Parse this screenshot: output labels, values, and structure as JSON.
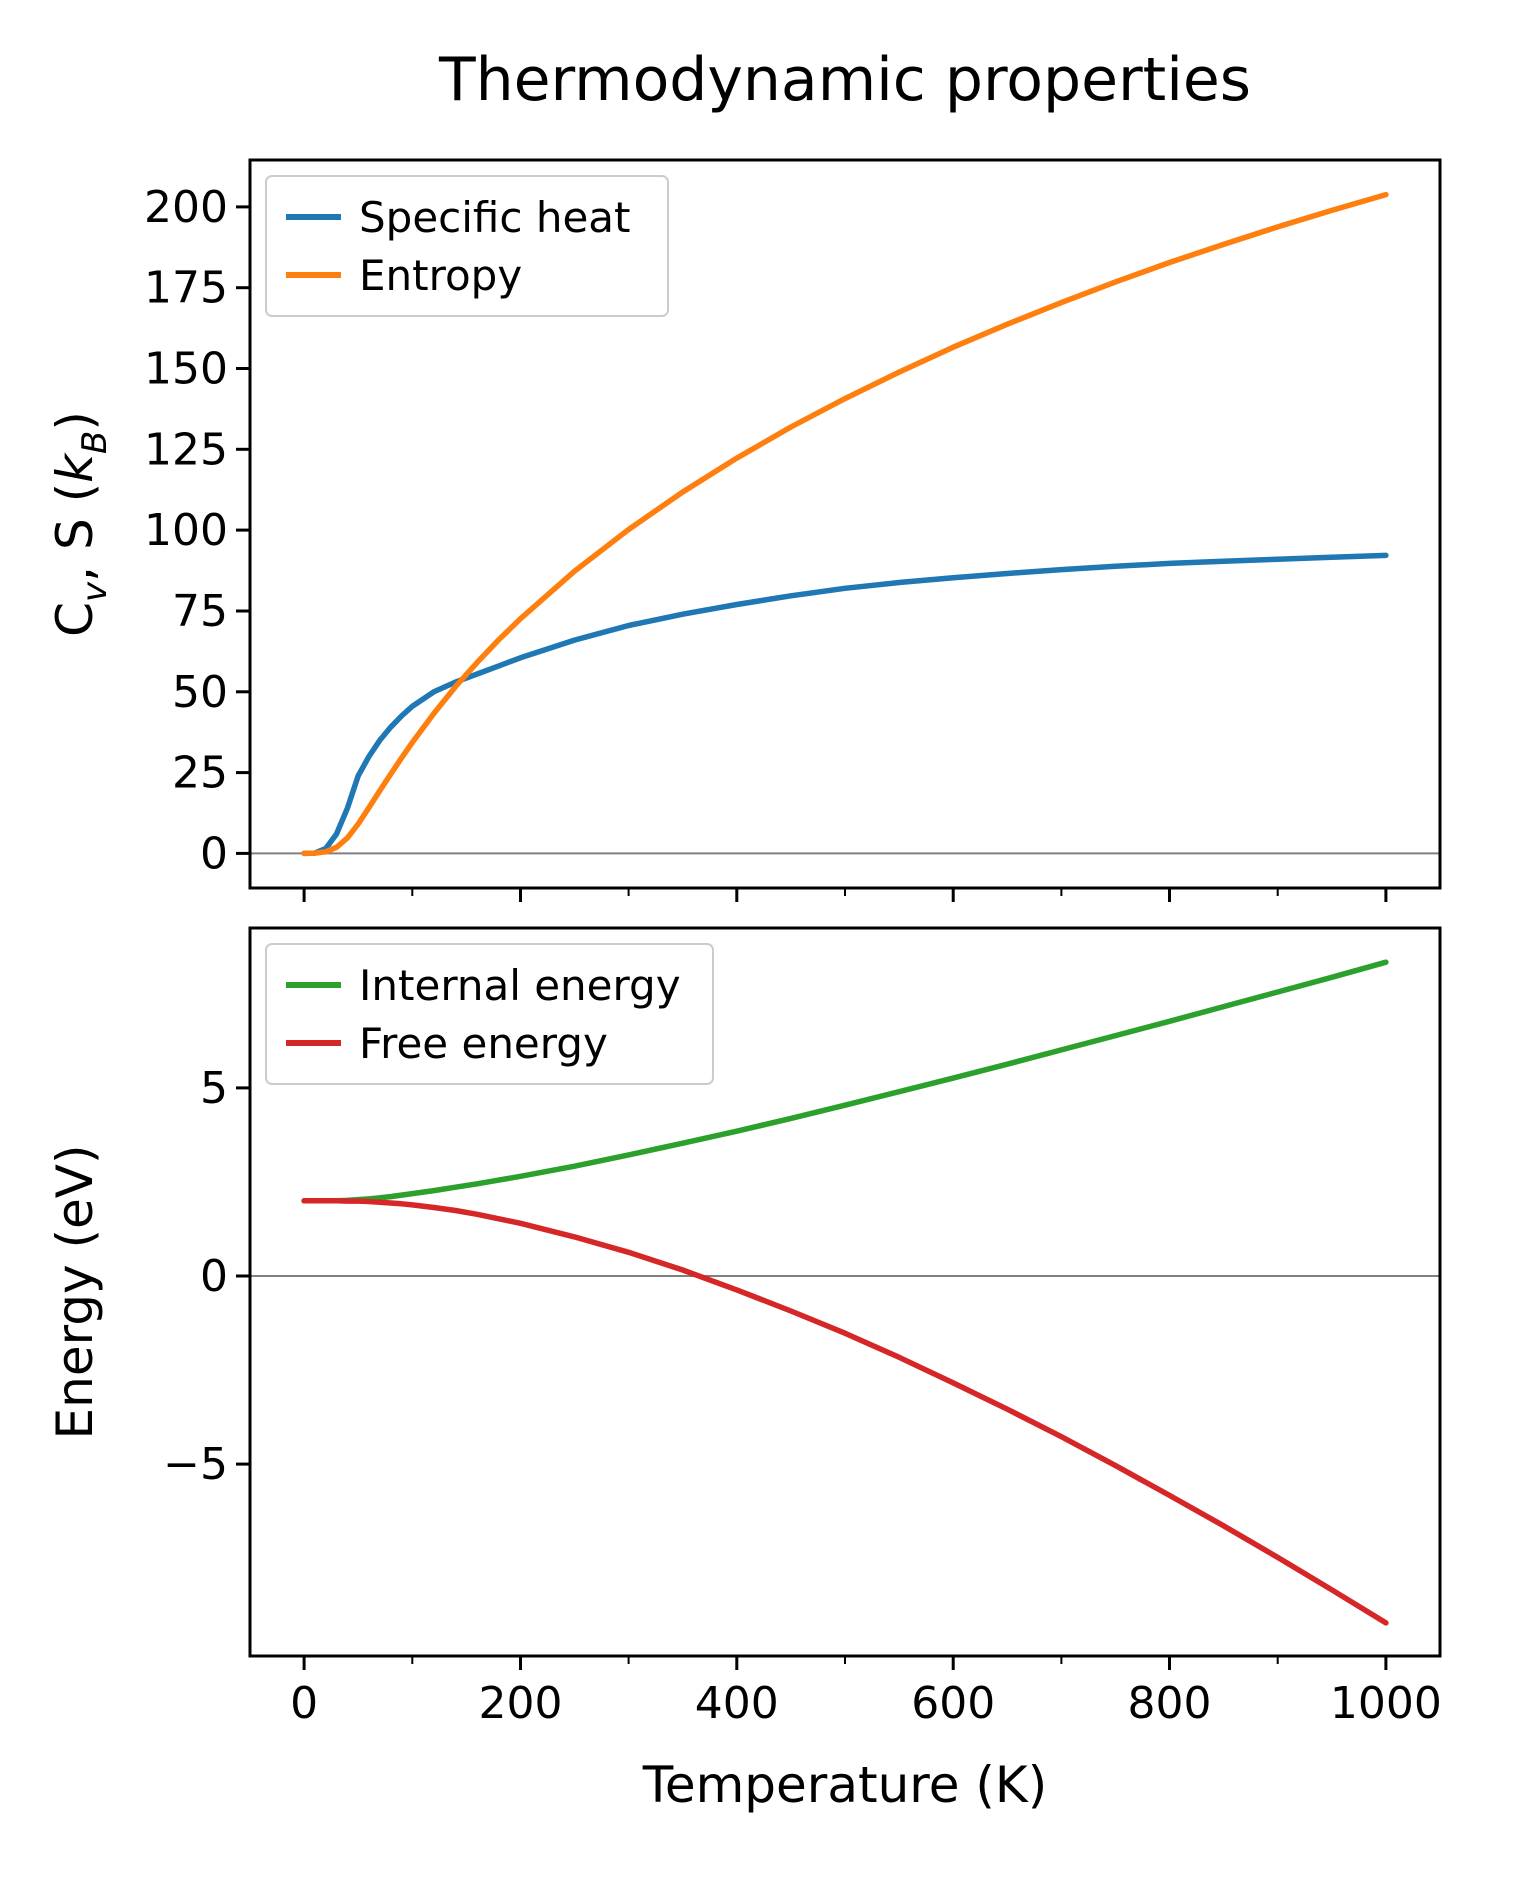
{
  "title": "Thermodynamic properties",
  "xlabel": "Temperature (K)",
  "chart_data": [
    {
      "type": "line",
      "ylabel_plain": "Cv, S (kB)",
      "ylabel_parts": [
        {
          "t": "C"
        },
        {
          "t": "v",
          "s": "sub"
        },
        {
          "t": ", S ("
        },
        {
          "t": "k",
          "s": "italic"
        },
        {
          "t": "B",
          "s": "sub"
        },
        {
          "t": ")"
        }
      ],
      "xlim": [
        -50,
        1050
      ],
      "ylim": [
        -10.7,
        214.5
      ],
      "xticks": {
        "values": [
          0,
          200,
          400,
          600,
          800,
          1000
        ],
        "labels": []
      },
      "yticks": {
        "values": [
          0,
          25,
          50,
          75,
          100,
          125,
          150,
          175,
          200
        ],
        "labels": [
          "0",
          "25",
          "50",
          "75",
          "100",
          "125",
          "150",
          "175",
          "200"
        ]
      },
      "zero_line": true,
      "zero_line_color": "#808080",
      "legend_position": "upper-left",
      "x": [
        0,
        10,
        20,
        30,
        40,
        50,
        60,
        70,
        80,
        90,
        100,
        120,
        140,
        160,
        180,
        200,
        250,
        300,
        350,
        400,
        450,
        500,
        550,
        600,
        650,
        700,
        750,
        800,
        850,
        900,
        950,
        1000
      ],
      "series": [
        {
          "name": "Specific heat",
          "color": "#1f77b4",
          "values": [
            0,
            0.1,
            1.5,
            6,
            14,
            24,
            30,
            35,
            39,
            42.5,
            45.5,
            50,
            53,
            55.5,
            58,
            60.5,
            66,
            70.5,
            74,
            77,
            79.7,
            82,
            83.8,
            85.3,
            86.6,
            87.8,
            88.8,
            89.7,
            90.4,
            91,
            91.6,
            92.2
          ]
        },
        {
          "name": "Entropy",
          "color": "#ff7f0e",
          "values": [
            0,
            0.1,
            0.5,
            1.9,
            4.8,
            9.1,
            14.2,
            19.4,
            24.5,
            29.5,
            34.3,
            43.3,
            51.6,
            59.1,
            66.1,
            72.6,
            87.3,
            100.2,
            111.8,
            122.3,
            131.9,
            140.7,
            148.9,
            156.6,
            163.7,
            170.4,
            176.8,
            182.8,
            188.4,
            193.8,
            198.9,
            203.8
          ]
        }
      ]
    },
    {
      "type": "line",
      "ylabel_plain": "Energy (eV)",
      "ylabel_parts": [
        {
          "t": "Energy (eV)"
        }
      ],
      "xlim": [
        -50,
        1050
      ],
      "ylim": [
        -10.1,
        9.25
      ],
      "xticks": {
        "values": [
          0,
          200,
          400,
          600,
          800,
          1000
        ],
        "labels": [
          "0",
          "200",
          "400",
          "600",
          "800",
          "1000"
        ]
      },
      "yticks": {
        "values": [
          -5,
          0,
          5
        ],
        "labels": [
          "−5",
          "0",
          "5"
        ]
      },
      "zero_line": true,
      "zero_line_color": "#808080",
      "legend_position": "upper-left",
      "x": [
        0,
        10,
        20,
        30,
        40,
        50,
        60,
        70,
        80,
        90,
        100,
        120,
        140,
        160,
        180,
        200,
        250,
        300,
        350,
        400,
        450,
        500,
        550,
        600,
        650,
        700,
        750,
        800,
        850,
        900,
        950,
        1000
      ],
      "series": [
        {
          "name": "Internal energy",
          "color": "#2ca02c",
          "values": [
            2.0,
            2.0,
            2.0,
            2.0,
            2.01,
            2.03,
            2.05,
            2.08,
            2.11,
            2.15,
            2.19,
            2.27,
            2.36,
            2.45,
            2.55,
            2.65,
            2.92,
            3.22,
            3.53,
            3.85,
            4.19,
            4.54,
            4.9,
            5.26,
            5.63,
            6.01,
            6.39,
            6.77,
            7.16,
            7.55,
            7.94,
            8.34
          ]
        },
        {
          "name": "Free energy",
          "color": "#d62728",
          "values": [
            2.0,
            2.0,
            2.0,
            2.0,
            1.99,
            1.99,
            1.98,
            1.96,
            1.94,
            1.92,
            1.89,
            1.82,
            1.74,
            1.64,
            1.52,
            1.4,
            1.04,
            0.63,
            0.16,
            -0.37,
            -0.93,
            -1.52,
            -2.16,
            -2.84,
            -3.54,
            -4.27,
            -5.04,
            -5.83,
            -6.64,
            -7.48,
            -8.34,
            -9.22
          ]
        }
      ]
    }
  ]
}
